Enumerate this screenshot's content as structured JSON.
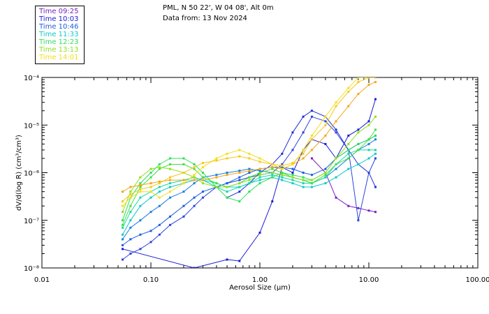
{
  "header": {
    "title": "PML, N 50 22', W 04 08', Alt 0m",
    "subtitle": "Data from: 13 Nov 2024"
  },
  "legend": [
    {
      "label": "Time 09:25",
      "color": "#7a1fbf"
    },
    {
      "label": "Time 10:03",
      "color": "#1b1bd6"
    },
    {
      "label": "Time 10:46",
      "color": "#1a5ee0"
    },
    {
      "label": "Time 11:33",
      "color": "#12c8c8"
    },
    {
      "label": "Time 12:23",
      "color": "#2ee05a"
    },
    {
      "label": "Time 13:13",
      "color": "#8fe01e"
    },
    {
      "label": "Time 14:01",
      "color": "#f2e01a"
    }
  ],
  "chart_data": {
    "type": "line",
    "xlabel": "Aerosol Size (µm)",
    "ylabel": "dV/d(log R) (cm³/cm³)",
    "x_scale": "log",
    "y_scale": "log",
    "xlim": [
      0.01,
      100
    ],
    "ylim": [
      1e-08,
      0.0001
    ],
    "x_ticks": [
      {
        "value": 0.01,
        "label": "0.01"
      },
      {
        "value": 0.1,
        "label": "0.10"
      },
      {
        "value": 1,
        "label": "1.00"
      },
      {
        "value": 10,
        "label": "10.00"
      },
      {
        "value": 100,
        "label": "100.00"
      }
    ],
    "y_ticks": [
      {
        "value": 1e-08,
        "label": "10⁻⁸"
      },
      {
        "value": 1e-07,
        "label": "10⁻⁷"
      },
      {
        "value": 1e-06,
        "label": "10⁻⁶"
      },
      {
        "value": 1e-05,
        "label": "10⁻⁵"
      },
      {
        "value": 0.0001,
        "label": "10⁻⁴"
      }
    ],
    "x": [
      0.055,
      0.065,
      0.08,
      0.1,
      0.12,
      0.15,
      0.2,
      0.25,
      0.3,
      0.4,
      0.5,
      0.65,
      0.8,
      1.0,
      1.3,
      1.6,
      2.0,
      2.5,
      3.0,
      4.0,
      5.0,
      6.5,
      8.0,
      10.0,
      11.5
    ],
    "series": [
      {
        "color": "#7a1fbf",
        "values": [
          null,
          null,
          null,
          null,
          null,
          null,
          null,
          null,
          null,
          null,
          null,
          null,
          null,
          null,
          null,
          null,
          null,
          null,
          2e-06,
          1e-06,
          3e-07,
          2e-07,
          1.8e-07,
          1.6e-07,
          1.5e-07
        ]
      },
      {
        "color": "#1b1bd6",
        "values": [
          2.5e-08,
          null,
          null,
          null,
          null,
          null,
          null,
          1e-08,
          null,
          null,
          1.5e-08,
          1.4e-08,
          null,
          5.5e-08,
          2.5e-07,
          1.3e-06,
          1e-06,
          3e-06,
          5e-06,
          4e-06,
          2e-06,
          6e-06,
          8e-06,
          1.2e-05,
          3.5e-05
        ]
      },
      {
        "color": "#1e2fd8",
        "values": [
          null,
          null,
          null,
          null,
          null,
          null,
          null,
          null,
          null,
          null,
          3e-07,
          4e-07,
          6e-07,
          1e-06,
          1.5e-06,
          2.5e-06,
          7e-06,
          1.5e-05,
          2e-05,
          1.5e-05,
          8e-06,
          3e-06,
          1.5e-06,
          1e-06,
          5e-07
        ]
      },
      {
        "color": "#2a44dc",
        "values": [
          1.5e-08,
          2e-08,
          2.5e-08,
          3.5e-08,
          5e-08,
          8e-08,
          1.2e-07,
          2e-07,
          3e-07,
          5e-07,
          6e-07,
          7e-07,
          8e-07,
          9e-07,
          1e-06,
          1.5e-06,
          3e-06,
          7e-06,
          1.5e-05,
          1.2e-05,
          7e-06,
          3e-06,
          1e-07,
          1e-06,
          2e-06
        ]
      },
      {
        "color": "#1a5ee0",
        "values": [
          3e-08,
          4e-08,
          5e-08,
          6e-08,
          8e-08,
          1.2e-07,
          2e-07,
          3e-07,
          4e-07,
          5e-07,
          6e-07,
          8e-07,
          1e-06,
          1.2e-06,
          1.3e-06,
          1.3e-06,
          1.2e-06,
          1e-06,
          9e-07,
          1.2e-06,
          2e-06,
          3e-06,
          4e-06,
          5e-06,
          6e-06
        ]
      },
      {
        "color": "#1a7fe0",
        "values": [
          4e-08,
          7e-08,
          1e-07,
          1.5e-07,
          2e-07,
          3e-07,
          4e-07,
          6e-07,
          8e-07,
          9e-07,
          1e-06,
          1.1e-06,
          1.2e-06,
          1.1e-06,
          1e-06,
          9e-07,
          8e-07,
          7e-07,
          6e-07,
          8e-07,
          1.2e-06,
          2e-06,
          3e-06,
          4e-06,
          5e-06
        ]
      },
      {
        "color": "#12c8c8",
        "values": [
          5e-08,
          1e-07,
          2e-07,
          3e-07,
          4e-07,
          5e-07,
          6e-07,
          7e-07,
          7e-07,
          6e-07,
          5e-07,
          5e-07,
          6e-07,
          7e-07,
          8e-07,
          7e-07,
          6e-07,
          5e-07,
          5e-07,
          6e-07,
          8e-07,
          1.2e-06,
          1.5e-06,
          2e-06,
          2.5e-06
        ]
      },
      {
        "color": "#14d8a8",
        "values": [
          7e-08,
          1.5e-07,
          3e-07,
          4e-07,
          5e-07,
          6e-07,
          7e-07,
          8e-07,
          7e-07,
          5e-07,
          4e-07,
          5e-07,
          6e-07,
          8e-07,
          9e-07,
          8e-07,
          7e-07,
          6e-07,
          6e-07,
          8e-07,
          1.5e-06,
          2.5e-06,
          3e-06,
          3e-06,
          3e-06
        ]
      },
      {
        "color": "#2ee05a",
        "values": [
          1e-07,
          3e-07,
          6e-07,
          1e-06,
          1.5e-06,
          2e-06,
          2e-06,
          1.5e-06,
          1e-06,
          5e-07,
          3e-07,
          2.5e-07,
          4e-07,
          6e-07,
          8e-07,
          1e-06,
          9e-07,
          8e-07,
          7e-07,
          1e-06,
          2e-06,
          3e-06,
          4e-06,
          5e-06,
          6e-06
        ]
      },
      {
        "color": "#44e040",
        "values": [
          8e-08,
          2e-07,
          5e-07,
          8e-07,
          1.2e-06,
          1.5e-06,
          1.5e-06,
          1.2e-06,
          8e-07,
          6e-07,
          5e-07,
          6e-07,
          8e-07,
          1e-06,
          1.2e-06,
          1e-06,
          8e-07,
          7e-07,
          6e-07,
          9e-07,
          1.5e-06,
          2e-06,
          3e-06,
          5e-06,
          8e-06
        ]
      },
      {
        "color": "#8fe01e",
        "values": [
          1.5e-07,
          4e-07,
          8e-07,
          1.2e-06,
          1.3e-06,
          1.2e-06,
          1e-06,
          8e-07,
          6e-07,
          5e-07,
          5e-07,
          6e-07,
          7e-07,
          9e-07,
          1e-06,
          9e-07,
          8e-07,
          7e-07,
          7e-07,
          1e-06,
          2e-06,
          4e-06,
          7e-06,
          1e-05,
          1.5e-05
        ]
      },
      {
        "color": "#f0a818",
        "values": [
          4e-07,
          5e-07,
          5.5e-07,
          6e-07,
          6.5e-07,
          7e-07,
          7e-07,
          7e-07,
          7e-07,
          8e-07,
          9e-07,
          1e-06,
          1.1e-06,
          1.2e-06,
          1.3e-06,
          1.2e-06,
          1.5e-06,
          2e-06,
          3e-06,
          6e-06,
          1.2e-05,
          2.5e-05,
          4.5e-05,
          7e-05,
          8e-05
        ]
      },
      {
        "color": "#f2e01a",
        "values": [
          2e-07,
          3e-07,
          4e-07,
          4e-07,
          3e-07,
          4e-07,
          6e-07,
          9e-07,
          1.3e-06,
          2e-06,
          2.5e-06,
          3e-06,
          2.5e-06,
          2e-06,
          1.5e-06,
          1.2e-06,
          1.5e-06,
          3e-06,
          6e-06,
          1.5e-05,
          3e-05,
          6e-05,
          0.0001,
          0.0001,
          0.0001
        ]
      },
      {
        "color": "#f6c81a",
        "values": [
          2.5e-07,
          3.5e-07,
          4.5e-07,
          5e-07,
          6e-07,
          8e-07,
          1e-06,
          1.3e-06,
          1.6e-06,
          1.8e-06,
          2e-06,
          2.2e-06,
          2e-06,
          1.7e-06,
          1.5e-06,
          1.4e-06,
          1.6e-06,
          2.5e-06,
          5e-06,
          1e-05,
          2.5e-05,
          5e-05,
          8e-05,
          0.0001,
          0.0001
        ]
      }
    ]
  }
}
